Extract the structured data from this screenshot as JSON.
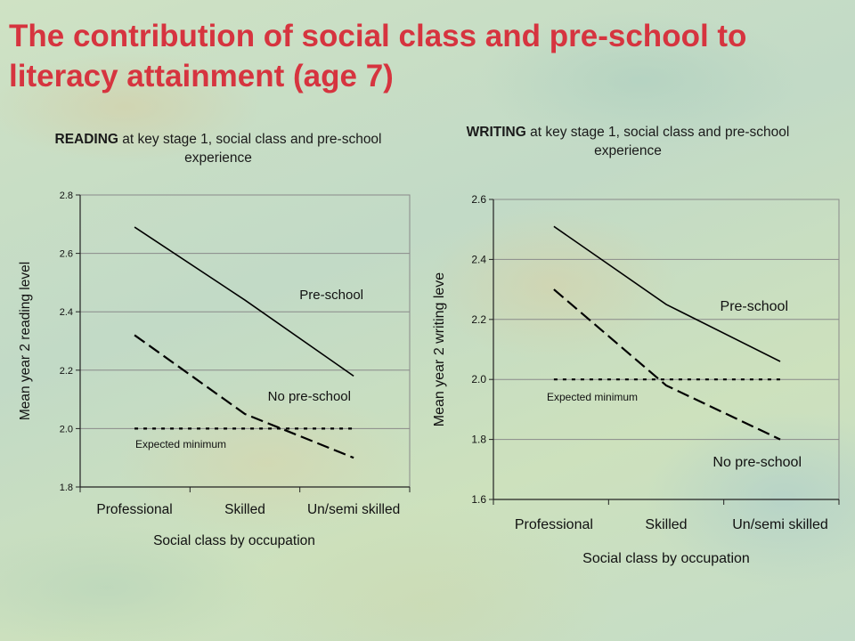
{
  "title": "The contribution of social class and pre-school to literacy attainment (age 7)",
  "chart_data": [
    {
      "type": "line",
      "title_bold": "READING",
      "title_rest": " at key stage 1, social class and pre-school experience",
      "xlabel": "Social class by occupation",
      "ylabel": "Mean year 2 reading level",
      "categories": [
        "Professional",
        "Skilled",
        "Un/semi skilled"
      ],
      "ylim": [
        1.8,
        2.8
      ],
      "yticks": [
        "1.8",
        "2.0",
        "2.2",
        "2.4",
        "2.6",
        "2.8"
      ],
      "grid": true,
      "series": [
        {
          "name": "Pre-school",
          "style": "solid",
          "values": [
            2.69,
            2.44,
            2.18
          ]
        },
        {
          "name": "No pre-school",
          "style": "dashed",
          "values": [
            2.32,
            2.05,
            1.9
          ]
        },
        {
          "name": "Expected minimum",
          "style": "dotted",
          "values": [
            2.0,
            2.0,
            2.0
          ]
        }
      ]
    },
    {
      "type": "line",
      "title_bold": "WRITING",
      "title_rest": " at key stage 1, social class and pre-school experience",
      "xlabel": "Social class by occupation",
      "ylabel": "Mean year 2 writing leve",
      "categories": [
        "Professional",
        "Skilled",
        "Un/semi skilled"
      ],
      "ylim": [
        1.6,
        2.6
      ],
      "yticks": [
        "1.6",
        "1.8",
        "2.0",
        "2.2",
        "2.4",
        "2.6"
      ],
      "grid": true,
      "series": [
        {
          "name": "Pre-school",
          "style": "solid",
          "values": [
            2.51,
            2.25,
            2.06
          ]
        },
        {
          "name": "No pre-school",
          "style": "dashed",
          "values": [
            2.3,
            1.98,
            1.8
          ]
        },
        {
          "name": "Expected minimum",
          "style": "dotted",
          "values": [
            2.0,
            2.0,
            2.0
          ]
        }
      ]
    }
  ]
}
